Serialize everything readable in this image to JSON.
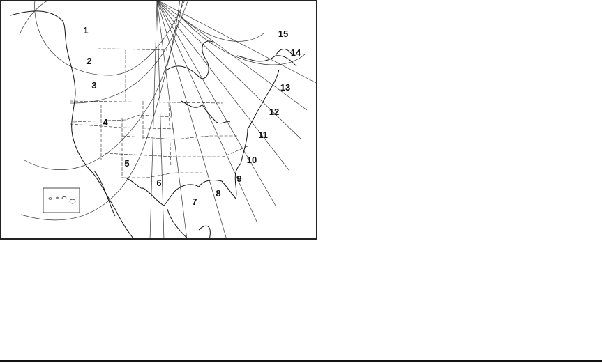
{
  "map": {
    "zones": [
      "1",
      "2",
      "3",
      "4",
      "5",
      "6",
      "7",
      "8",
      "9",
      "10",
      "11",
      "12",
      "13",
      "14",
      "15"
    ]
  }
}
